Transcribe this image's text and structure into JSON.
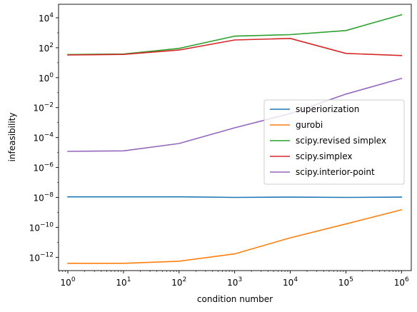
{
  "chart_data": {
    "type": "line",
    "xlabel": "condition number",
    "ylabel": "infeasibility",
    "xscale": "log",
    "yscale": "log",
    "xlim": [
      0.68,
      1500000.0
    ],
    "ylim": [
      1.3e-13,
      80000.0
    ],
    "x": [
      1,
      10,
      100,
      1000,
      10000,
      100000,
      1000000
    ],
    "x_ticks": [
      {
        "value": 1,
        "mantissa": "10",
        "exp": "0"
      },
      {
        "value": 10,
        "mantissa": "10",
        "exp": "1"
      },
      {
        "value": 100,
        "mantissa": "10",
        "exp": "2"
      },
      {
        "value": 1000,
        "mantissa": "10",
        "exp": "3"
      },
      {
        "value": 10000,
        "mantissa": "10",
        "exp": "4"
      },
      {
        "value": 100000,
        "mantissa": "10",
        "exp": "5"
      },
      {
        "value": 1000000,
        "mantissa": "10",
        "exp": "6"
      }
    ],
    "y_ticks": [
      {
        "value": 1e-12,
        "mantissa": "10",
        "exp": "−12"
      },
      {
        "value": 1e-10,
        "mantissa": "10",
        "exp": "−10"
      },
      {
        "value": 1e-08,
        "mantissa": "10",
        "exp": "−8"
      },
      {
        "value": 1e-06,
        "mantissa": "10",
        "exp": "−6"
      },
      {
        "value": 0.0001,
        "mantissa": "10",
        "exp": "−4"
      },
      {
        "value": 0.01,
        "mantissa": "10",
        "exp": "−2"
      },
      {
        "value": 1,
        "mantissa": "10",
        "exp": "0"
      },
      {
        "value": 100,
        "mantissa": "10",
        "exp": "2"
      },
      {
        "value": 10000,
        "mantissa": "10",
        "exp": "4"
      }
    ],
    "series": [
      {
        "name": "superiorization",
        "color": "#1f77b4",
        "values": [
          1.1e-08,
          1.1e-08,
          1.1e-08,
          1e-08,
          1.05e-08,
          1e-08,
          1.05e-08
        ]
      },
      {
        "name": "gurobi",
        "color": "#ff7f0e",
        "values": [
          4e-13,
          4e-13,
          5.5e-13,
          1.7e-12,
          2e-11,
          1.7e-10,
          1.5e-09
        ]
      },
      {
        "name": "scipy.revised simplex",
        "color": "#2ca02c",
        "values": [
          35,
          38,
          90,
          600,
          750,
          1400,
          16000
        ]
      },
      {
        "name": "scipy.simplex",
        "color": "#d62728",
        "values": [
          33,
          36,
          70,
          330,
          420,
          42,
          30
        ]
      },
      {
        "name": "scipy.interior-point",
        "color": "#9467bd",
        "values": [
          1.2e-05,
          1.3e-05,
          4e-05,
          0.00045,
          0.004,
          0.08,
          0.9
        ]
      }
    ],
    "legend": {
      "placement": "center-right"
    },
    "grid": false
  }
}
